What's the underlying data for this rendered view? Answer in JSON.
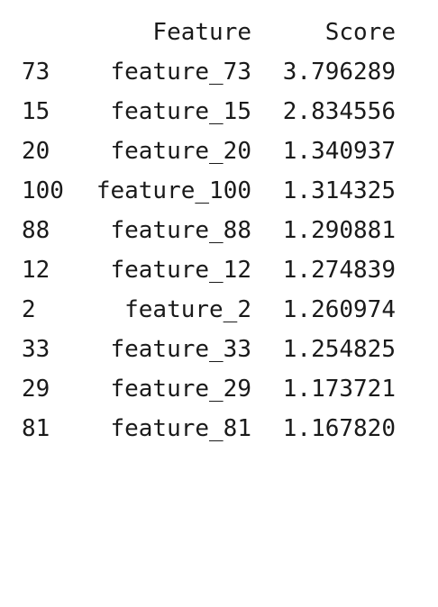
{
  "table": {
    "columns": [
      "Feature",
      "Score"
    ],
    "rows": [
      {
        "index": "73",
        "feature": "feature_73",
        "score": "3.796289"
      },
      {
        "index": "15",
        "feature": "feature_15",
        "score": "2.834556"
      },
      {
        "index": "20",
        "feature": "feature_20",
        "score": "1.340937"
      },
      {
        "index": "100",
        "feature": "feature_100",
        "score": "1.314325"
      },
      {
        "index": "88",
        "feature": "feature_88",
        "score": "1.290881"
      },
      {
        "index": "12",
        "feature": "feature_12",
        "score": "1.274839"
      },
      {
        "index": "2",
        "feature": "feature_2",
        "score": "1.260974"
      },
      {
        "index": "33",
        "feature": "feature_33",
        "score": "1.254825"
      },
      {
        "index": "29",
        "feature": "feature_29",
        "score": "1.173721"
      },
      {
        "index": "81",
        "feature": "feature_81",
        "score": "1.167820"
      }
    ]
  }
}
